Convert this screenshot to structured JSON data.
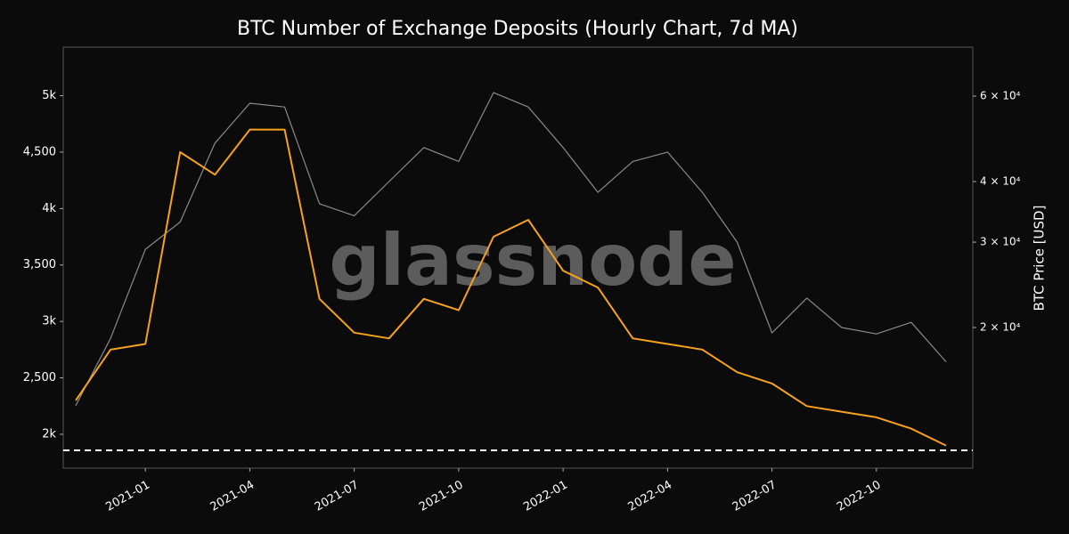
{
  "chart_data": {
    "type": "line",
    "title": "BTC Number of Exchange Deposits (Hourly Chart, 7d MA)",
    "y2_label": "BTC Price [USD]",
    "watermark": "glassnode",
    "x": [
      "2020-11",
      "2020-12",
      "2021-01",
      "2021-02",
      "2021-03",
      "2021-04",
      "2021-05",
      "2021-06",
      "2021-07",
      "2021-08",
      "2021-09",
      "2021-10",
      "2021-11",
      "2021-12",
      "2022-01",
      "2022-02",
      "2022-03",
      "2022-04",
      "2022-05",
      "2022-06",
      "2022-07",
      "2022-08",
      "2022-09",
      "2022-10",
      "2022-11",
      "2022-12"
    ],
    "xlim": [
      "2020-11",
      "2022-12"
    ],
    "xticks": [
      "2021-01",
      "2021-04",
      "2021-07",
      "2021-10",
      "2022-01",
      "2022-04",
      "2022-07",
      "2022-10"
    ],
    "series": [
      {
        "color": "#f7a21b",
        "values": [
          2300,
          2750,
          2800,
          4500,
          4300,
          4700,
          4700,
          3200,
          2900,
          2850,
          3200,
          3100,
          3750,
          3900,
          3450,
          3300,
          2850,
          2800,
          2750,
          2550,
          2450,
          2250,
          2200,
          2150,
          2050,
          1900
        ]
      },
      {
        "color": "#8a8a8a",
        "axis": "y2",
        "values": [
          13800,
          19000,
          29000,
          33000,
          48000,
          58000,
          57000,
          36000,
          34000,
          40000,
          47000,
          44000,
          61000,
          57000,
          47000,
          38000,
          44000,
          46000,
          38000,
          30000,
          19500,
          23000,
          20000,
          19400,
          20500,
          17000
        ]
      }
    ],
    "ylim": [
      1700,
      5430
    ],
    "yticks": [
      {
        "value": 2000,
        "label": "2k"
      },
      {
        "value": 2500,
        "label": "2,500"
      },
      {
        "value": 3000,
        "label": "3k"
      },
      {
        "value": 3500,
        "label": "3,500"
      },
      {
        "value": 4000,
        "label": "4k"
      },
      {
        "value": 4500,
        "label": "4,500"
      },
      {
        "value": 5000,
        "label": "5k"
      }
    ],
    "y2lim": [
      10260,
      75700
    ],
    "y2log": true,
    "y2ticks": [
      {
        "value": 20000,
        "label": "2 × 10⁴"
      },
      {
        "value": 30000,
        "label": "3 × 10⁴"
      },
      {
        "value": 40000,
        "label": "4 × 10⁴"
      },
      {
        "value": 60000,
        "label": "6 × 10⁴"
      }
    ],
    "hline": 1858
  }
}
